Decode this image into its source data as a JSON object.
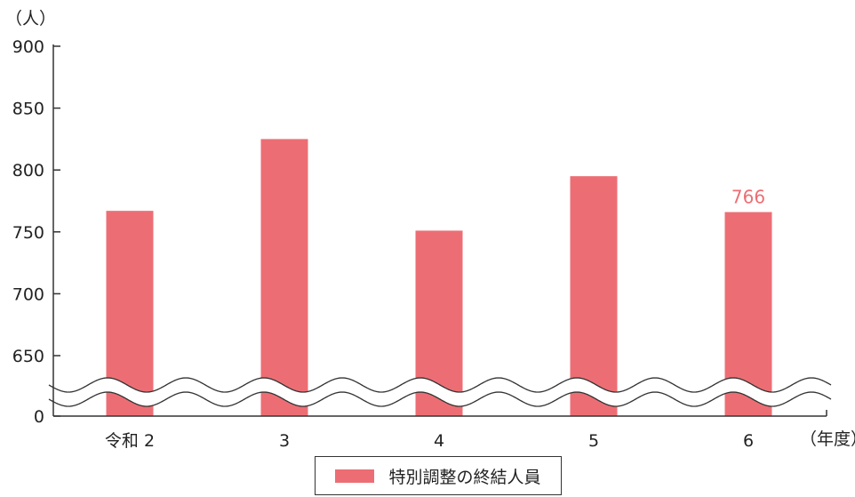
{
  "chart_data": {
    "type": "bar",
    "y_unit_label": "（人）",
    "x_unit_label": "（年度）",
    "categories": [
      "令和 2",
      "3",
      "4",
      "5",
      "6"
    ],
    "series": [
      {
        "name": "特別調整の終結人員",
        "values": [
          767,
          825,
          751,
          795,
          766
        ],
        "color": "#ec6e74"
      }
    ],
    "ylim": [
      650,
      900
    ],
    "yticks": [
      "900",
      "850",
      "800",
      "750",
      "700",
      "650",
      "0"
    ],
    "axis_break": true,
    "data_labels": [
      {
        "index": 4,
        "text": "766"
      }
    ],
    "grid": false,
    "legend_position": "bottom-center"
  }
}
